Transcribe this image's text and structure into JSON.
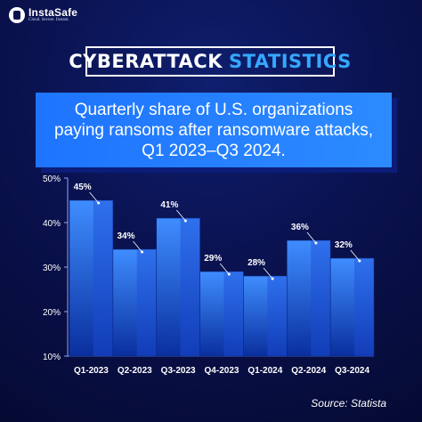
{
  "brand": {
    "name": "InstaSafe",
    "tagline": "Cloud. Secure. Instant."
  },
  "title": {
    "part1": "CYBERATTACK",
    "part2": "STATISTICS"
  },
  "subtitle": "Quarterly share of U.S. organizations paying ransoms after ransomware attacks, Q1 2023–Q3 2024.",
  "source": "Source: Statista",
  "colors": {
    "bar_top": "#3f8dff",
    "bar_bottom": "#0a2f9e",
    "bar_side": "#1c4ed8",
    "accent": "#35a7ff"
  },
  "chart_data": {
    "type": "bar",
    "categories": [
      "Q1-2023",
      "Q2-2023",
      "Q3-2023",
      "Q4-2023",
      "Q1-2024",
      "Q2-2024",
      "Q3-2024"
    ],
    "values": [
      45,
      34,
      41,
      29,
      28,
      36,
      32
    ],
    "data_labels": [
      "45%",
      "34%",
      "41%",
      "29%",
      "28%",
      "36%",
      "32%"
    ],
    "yticks": [
      "10%",
      "20%",
      "30%",
      "40%",
      "50%"
    ],
    "ytick_values": [
      10,
      20,
      30,
      40,
      50
    ],
    "ylim": [
      10,
      50
    ],
    "grid": false
  }
}
